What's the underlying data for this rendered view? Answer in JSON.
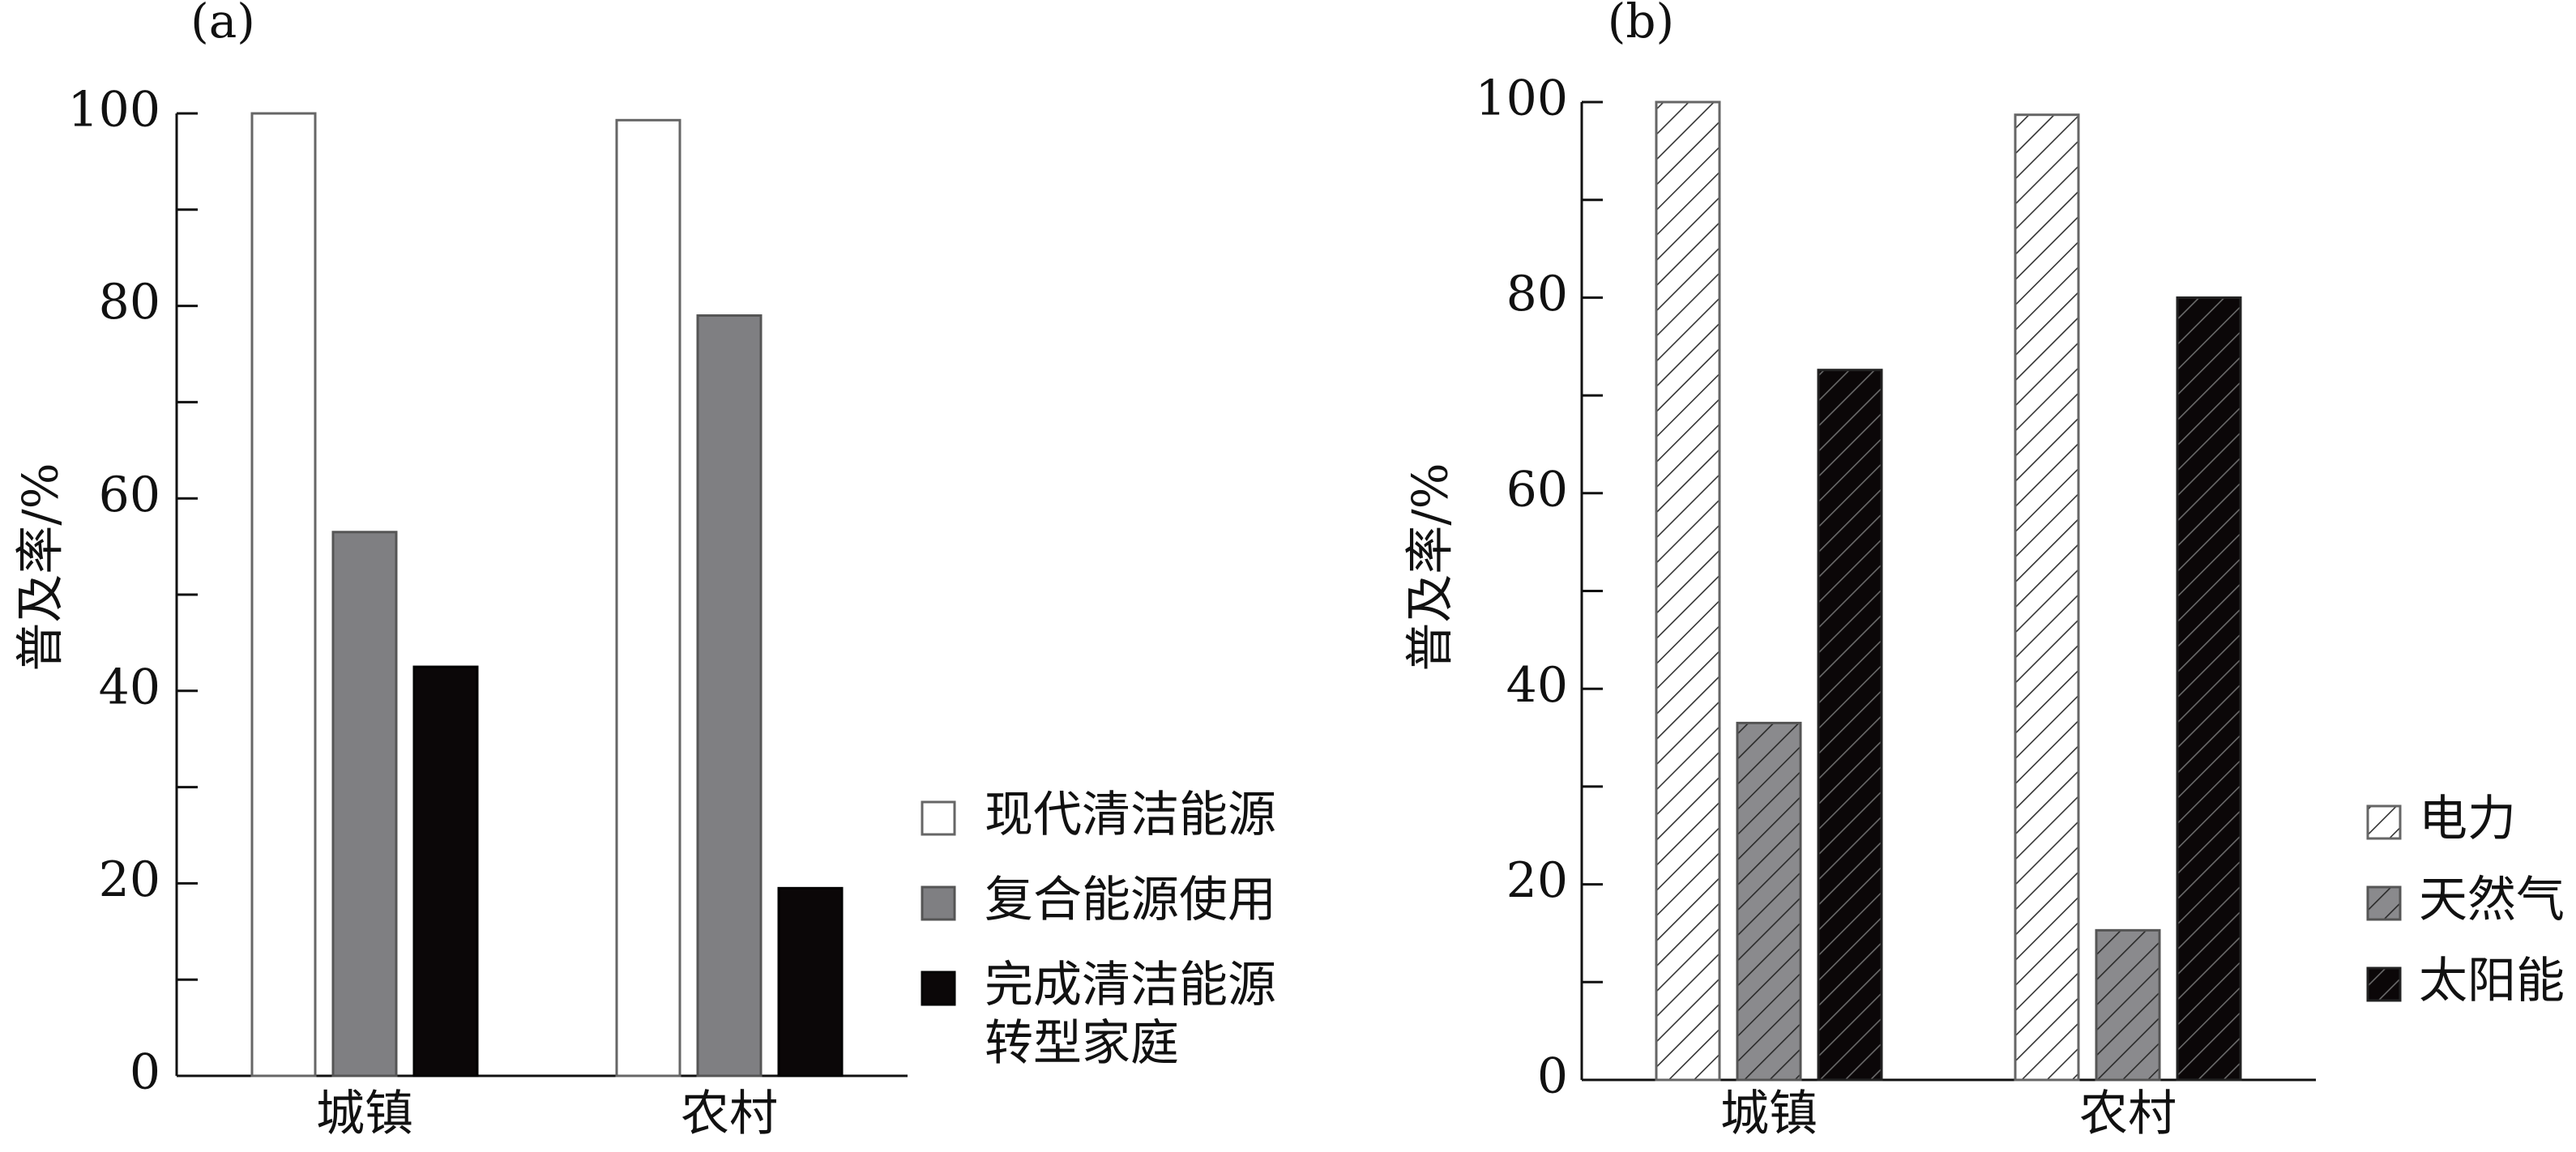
{
  "chart_data": [
    {
      "panel_label": "(a)",
      "type": "bar",
      "ylabel": "普及率/%",
      "ylim": [
        0,
        100
      ],
      "yticks": [
        "0",
        "20",
        "40",
        "60",
        "80",
        "100"
      ],
      "categories": [
        "城镇",
        "农村"
      ],
      "series": [
        {
          "name": "现代清洁能源",
          "fill": "#ffffff",
          "stroke": "#666666",
          "hatch": false,
          "values": [
            100,
            99.3
          ]
        },
        {
          "name": "复合能源使用",
          "fill": "#7f7f82",
          "stroke": "#555555",
          "hatch": false,
          "values": [
            56.5,
            79
          ]
        },
        {
          "name": "完成清洁能源\n转型家庭",
          "fill": "#0b0708",
          "stroke": "#000000",
          "hatch": false,
          "values": [
            42.5,
            19.5
          ]
        }
      ],
      "legend": {
        "position": "bottom-right"
      }
    },
    {
      "panel_label": "(b)",
      "type": "bar",
      "ylabel": "普及率/%",
      "ylim": [
        0,
        100
      ],
      "yticks": [
        "0",
        "20",
        "40",
        "60",
        "80",
        "100"
      ],
      "categories": [
        "城镇",
        "农村"
      ],
      "series": [
        {
          "name": "电力",
          "fill": "#ffffff",
          "stroke": "#666666",
          "hatch": true,
          "hatch_color": "#333333",
          "values": [
            100,
            98.7
          ]
        },
        {
          "name": "天然气",
          "fill": "#8a8a8d",
          "stroke": "#555555",
          "hatch": true,
          "hatch_color": "#2a2a2a",
          "values": [
            36.5,
            15.3
          ]
        },
        {
          "name": "太阳能",
          "fill": "#0b0708",
          "stroke": "#222222",
          "hatch": true,
          "hatch_color": "#6a6a6a",
          "values": [
            72.6,
            80
          ]
        }
      ],
      "legend": {
        "position": "bottom-right"
      }
    }
  ]
}
